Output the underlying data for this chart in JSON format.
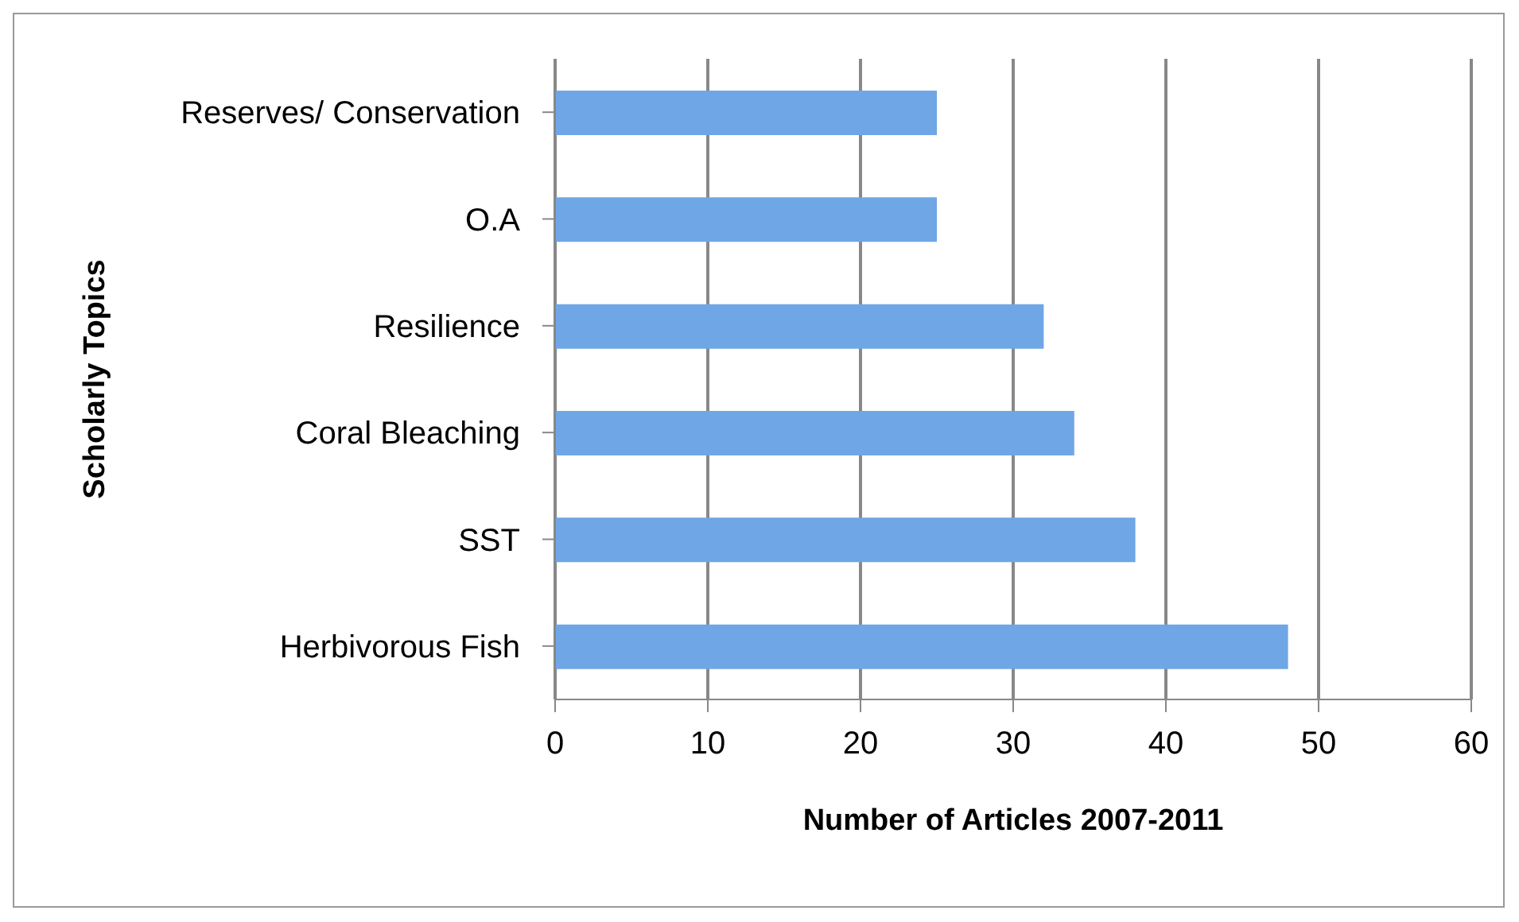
{
  "chart_data": {
    "type": "bar",
    "orientation": "horizontal",
    "xlabel": "Number of Articles 2007-2011",
    "ylabel": "Scholarly Topics",
    "categories": [
      "Reserves/ Conservation",
      "O.A",
      "Resilience",
      "Coral Bleaching",
      "SST",
      "Herbivorous Fish"
    ],
    "values": [
      25,
      25,
      32,
      34,
      38,
      48
    ],
    "color": "#6fa6e6",
    "xlim": [
      0,
      60
    ],
    "xticks": [
      0,
      10,
      20,
      30,
      40,
      50,
      60
    ],
    "grid": "x"
  }
}
